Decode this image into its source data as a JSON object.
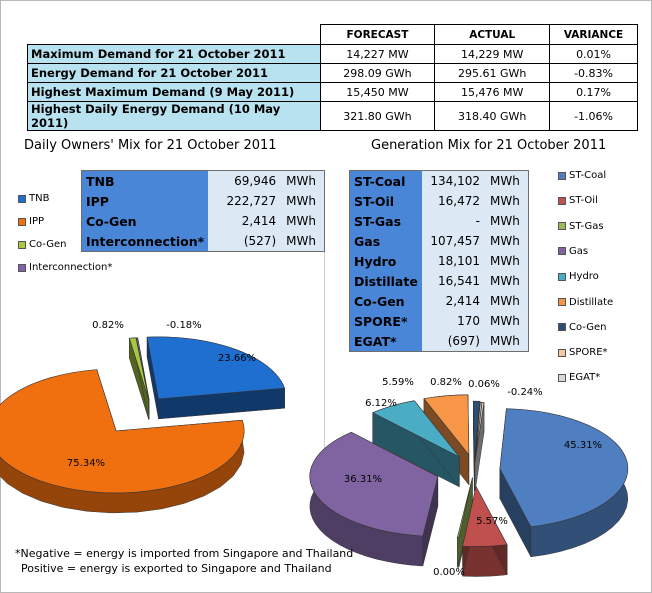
{
  "summary": {
    "headers": [
      "FORECAST",
      "ACTUAL",
      "VARIANCE"
    ],
    "rows": [
      {
        "label": "Maximum Demand for 21 October 2011",
        "forecast": "14,227  MW",
        "actual": "14,229  MW",
        "variance": "0.01%"
      },
      {
        "label": "Energy Demand for 21 October 2011",
        "forecast": "298.09  GWh",
        "actual": "295.61  GWh",
        "variance": "-0.83%"
      },
      {
        "label": "Highest Maximum Demand (9 May 2011)",
        "forecast": "15,450  MW",
        "actual": "15,476  MW",
        "variance": "0.17%"
      },
      {
        "label": "Highest Daily Energy Demand (10 May 2011)",
        "forecast": "321.80  GWh",
        "actual": "318.40  GWh",
        "variance": "-1.06%"
      }
    ]
  },
  "owners": {
    "title": "Daily Owners' Mix for 21 October 2011",
    "table": [
      {
        "name": "TNB",
        "value": "69,946",
        "unit": "MWh"
      },
      {
        "name": "IPP",
        "value": "222,727",
        "unit": "MWh"
      },
      {
        "name": "Co-Gen",
        "value": "2,414",
        "unit": "MWh"
      },
      {
        "name": "Interconnection*",
        "value": "(527)",
        "unit": "MWh"
      }
    ]
  },
  "generation": {
    "title": "Generation Mix for 21 October 2011",
    "table": [
      {
        "name": "ST-Coal",
        "value": "134,102",
        "unit": "MWh"
      },
      {
        "name": "ST-Oil",
        "value": "16,472",
        "unit": "MWh"
      },
      {
        "name": "ST-Gas",
        "value": "-",
        "unit": "MWh"
      },
      {
        "name": "Gas",
        "value": "107,457",
        "unit": "MWh"
      },
      {
        "name": "Hydro",
        "value": "18,101",
        "unit": "MWh"
      },
      {
        "name": "Distillate",
        "value": "16,541",
        "unit": "MWh"
      },
      {
        "name": "Co-Gen",
        "value": "2,414",
        "unit": "MWh"
      },
      {
        "name": "SPORE*",
        "value": "170",
        "unit": "MWh"
      },
      {
        "name": "EGAT*",
        "value": "(697)",
        "unit": "MWh"
      }
    ]
  },
  "notes": {
    "line1": "*Negative = energy is imported from Singapore and Thailand",
    "line2": "Positive = energy is exported to Singapore and Thailand"
  },
  "chart_data": [
    {
      "type": "pie",
      "title": "Daily Owners' Mix for 21 October 2011",
      "categories": [
        "TNB",
        "IPP",
        "Co-Gen",
        "Interconnection*"
      ],
      "values": [
        23.66,
        75.34,
        0.82,
        -0.18
      ],
      "labels": [
        "23.66%",
        "75.34%",
        "0.82%",
        "-0.18%"
      ],
      "colors": [
        "#1f6fd0",
        "#f07010",
        "#a8c840",
        "#8060a8"
      ],
      "legend": "left"
    },
    {
      "type": "pie",
      "title": "Generation Mix for 21 October 2011",
      "categories": [
        "ST-Coal",
        "ST-Oil",
        "ST-Gas",
        "Gas",
        "Hydro",
        "Distillate",
        "Co-Gen",
        "SPORE*",
        "EGAT*"
      ],
      "values": [
        45.31,
        5.57,
        0.0,
        36.31,
        6.12,
        5.59,
        0.82,
        0.06,
        -0.24
      ],
      "labels": [
        "45.31%",
        "5.57%",
        "0.00%",
        "36.31%",
        "6.12%",
        "5.59%",
        "0.82%",
        "0.06%",
        "-0.24%"
      ],
      "colors": [
        "#4f7fc0",
        "#c0504d",
        "#9bbb59",
        "#8064a2",
        "#4bacc6",
        "#f79646",
        "#2c4d75",
        "#f4c7a0",
        "#d8d8d8"
      ],
      "legend": "right"
    }
  ]
}
